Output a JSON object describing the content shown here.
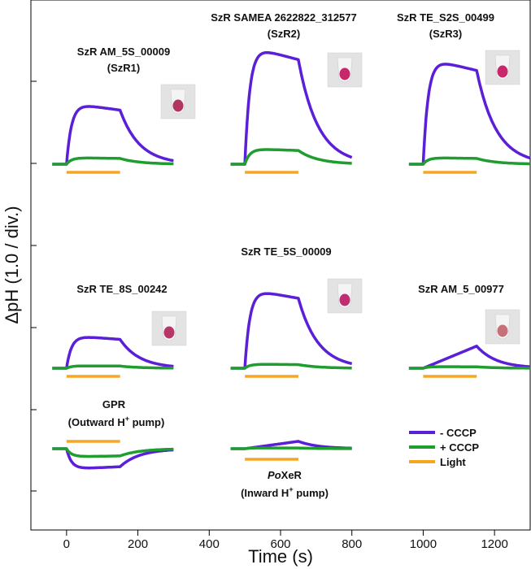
{
  "chart_data": {
    "type": "line",
    "xlabel": "Time (s)",
    "ylabel": "ΔpH (1.0 / div.)",
    "xlim": [
      -100,
      1300
    ],
    "xticks": [
      0,
      200,
      400,
      600,
      800,
      1000,
      1200
    ],
    "legend": {
      "placement": "bottom-right",
      "entries": [
        {
          "label": "- CCCP",
          "color": "#5a1fd6"
        },
        {
          "label": "+ CCCP",
          "color": "#1f9e2f"
        },
        {
          "label": "Light",
          "color": "#f5a623"
        }
      ]
    },
    "colors": {
      "minus_cccp": "#5a1fd6",
      "plus_cccp": "#1f9e2f",
      "light": "#f5a623"
    },
    "panels": [
      {
        "name": "SzR AM_5S_00009",
        "sub": "(SzR1)",
        "row": 0,
        "col": 0,
        "peak_minus": 0.75,
        "peak_plus": 0.08,
        "tube_color": "#b0365e"
      },
      {
        "name": "SzR SAMEA 2622822_312577",
        "sub": "(SzR2)",
        "row": 0,
        "col": 1,
        "peak_minus": 1.45,
        "peak_plus": 0.19,
        "tube_color": "#c8286a"
      },
      {
        "name": "SzR TE_S2S_00499",
        "sub": "(SzR3)",
        "row": 0,
        "col": 2,
        "peak_minus": 1.3,
        "peak_plus": 0.08,
        "tube_color": "#c8286a"
      },
      {
        "name": "SzR TE_8S_00242",
        "sub": "",
        "row": 1,
        "col": 0,
        "peak_minus": 0.4,
        "peak_plus": 0.03,
        "tube_color": "#b8356a"
      },
      {
        "name": "SzR TE_5S_00009",
        "sub": "",
        "row": 1,
        "col": 1,
        "peak_minus": 0.97,
        "peak_plus": 0.05,
        "tube_color": "#bf2e72"
      },
      {
        "name": "SzR AM_5_00977",
        "sub": "",
        "row": 1,
        "col": 2,
        "peak_minus": 0.27,
        "peak_plus": 0.02,
        "tube_color": "#c7707a"
      },
      {
        "name": "GPR",
        "sub": "(Outward H+ pump)",
        "row": 2,
        "col": 0,
        "peak_minus": -0.25,
        "peak_plus": -0.1,
        "tube_color": ""
      },
      {
        "name": "PoXeR",
        "sub": "(Inward H+ pump)",
        "row": 2,
        "col": 1,
        "peak_minus": 0.09,
        "peak_plus": 0.01,
        "tube_color": ""
      }
    ]
  }
}
